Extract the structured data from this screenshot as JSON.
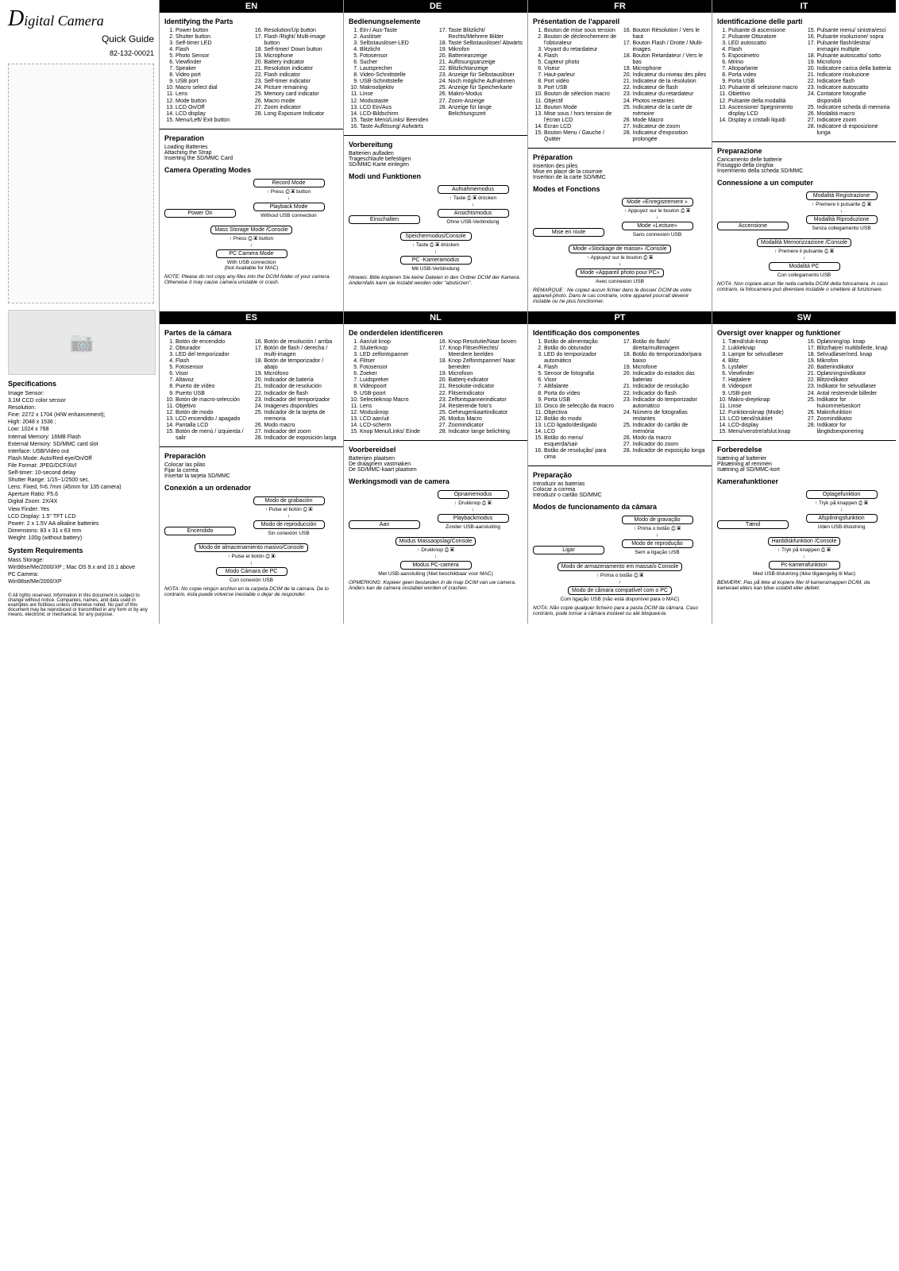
{
  "left": {
    "title_pre": "D",
    "title_rest": "igital Camera",
    "subtitle": "Quick Guide",
    "partnum": "82-132-00021",
    "spec_hdr": "Specifications",
    "specs": [
      "Image Sensor:",
      "3.1M CCD color sensor",
      "Resolution:",
      "Fine: 2272 x 1704 (H/W enhancement);",
      "High: 2048 x 1536 ;",
      "Low: 1024 x 768",
      "Internal Memory: 16MB Flash",
      "External Memory: SD/MMC card slot",
      "Interface: USB/Video out",
      "Flash Mode: Auto/Red-eye/On/Off",
      "File Format: JPEG/DCF/AVI",
      "Self-timer: 10-second delay",
      "Shutter Range: 1/15~1/2500 sec.",
      "Lens: Fixed, f=6.7mm (45mm for 135 camera)",
      "Aperture Ratio: F5.6",
      "Digital Zoom: 2X/4X",
      "View Finder: Yes",
      "LCD Display: 1.5\" TFT LCD",
      "Power: 2 x 1.5V AA alkaline batteries",
      "Dimensions: 83 x 31 x 63 mm",
      "Weight: 100g (without battery)"
    ],
    "sysreq_hdr": "System Requirements",
    "sysreq": [
      "Mass Storage:",
      "Win98se/Me/2000/XP ; Mac OS 9.x and 10.1 above",
      "PC Camera:",
      "Win98se/Me/2000/XP"
    ],
    "footer": "© All rights reserved. Information in this document is subject to change without notice. Companies, names, and data used in examples are fictitious unless otherwise noted. No part of this document may be reproduced or transmitted in any form or by any means, electronic or mechanical, for any purpose."
  },
  "langs": [
    {
      "code": "EN",
      "parts_hdr": "Identifying the Parts",
      "partsA": [
        "Power button",
        "Shutter button",
        "Self-timer LED",
        "Flash",
        "Photo Sensor",
        "Viewfinder",
        "Speaker",
        "Video port",
        "USB port",
        "Macro select dial",
        "Lens",
        "Mode button",
        "LCD On/Off",
        "LCD display",
        "Menu/Left/ Exit button"
      ],
      "partsB": [
        "Resolution/Up button",
        "Flash /Right/ Multi-image button",
        "Self-timer/ Down button",
        "Microphone",
        "Battery indicator",
        "Resolution indicator",
        "Flash indicator",
        "Self-timer indicator",
        "Picture remaining",
        "Memory card indicator",
        "Macro mode",
        "Zoom indicator",
        "Long Exposure Indicator"
      ],
      "prep_hdr": "Preparation",
      "prep": [
        "Loading Batteries",
        "Attaching the Strap",
        "Inserting the SD/MMC Card"
      ],
      "modes_hdr": "Camera Operating Modes",
      "flow": {
        "power": "Power On",
        "rec": "Record Mode",
        "press": "Press ⎙ ▣ button",
        "play": "Playback Mode",
        "nousb": "Without USB connection",
        "nousb2": "Ohne USB-Verbindung",
        "mass": "Mass Storage Mode /Console",
        "pc": "PC Camera Mode",
        "withusb": "With USB connection",
        "mac": "(Not Available for MAC)"
      },
      "note": "NOTE: Please do not copy any files into the DCIM folder of your camera. Otherwise it may cause camera unstable or crash."
    },
    {
      "code": "DE",
      "parts_hdr": "Bedienungselemente",
      "partsA": [
        "Ein-/ Aus-Taste",
        "Auslöser",
        "Selbstauslöser-LED",
        "Blitzlicht",
        "Fotosensor",
        "Sucher",
        "Lautsprecher",
        "Video-Schnittstelle",
        "USB-Schnittstelle",
        "Makroobjektiv",
        "Linse",
        "Modustaste",
        "LCD Ein/Aus",
        "LCD-Bildschirm",
        "Taste Menü/Links/ Beenden",
        "Taste Auflösung/ Aufwärts"
      ],
      "partsB": [
        "Taste Blitzlicht/ Rechts/Mehrere Bilder",
        "Taste Selbstauslöser/ Abwärts",
        "Mikrofon",
        "Batterieanzeige",
        "Auflösungsanzeige",
        "Blitzlichtanzeige",
        "Anzeige für Selbstauslöser",
        "Noch mögliche Aufnahmen",
        "Anzeige für Speicherkarte",
        "Makro-Modus",
        "Zoom-Anzeige",
        "Anzeige für lange Belichtungszeit"
      ],
      "prep_hdr": "Vorbereitung",
      "prep": [
        "Batterien aufladen",
        "Trageschlaufe befestigen",
        "SD/MMC-Karte einlegen"
      ],
      "modes_hdr": "Modi und Funktionen",
      "flow": {
        "power": "Einschalten",
        "rec": "Aufnahmemodus",
        "press": "Taste ⎙ ▣ drücken",
        "play": "Ansichtsmodus",
        "nousb": "Ohne USB-Verbindung",
        "mass": "Speichermodus/Console",
        "pc": "PC -Kameramodus",
        "withusb": "Mit USB-Verblindung"
      },
      "note": "Hinweis: Bitte kopieren Sie keine Dateien in den Ordner DCIM der Kamera. Andernfalls kann sie instabil werden oder \"abstürzen\"."
    },
    {
      "code": "FR",
      "parts_hdr": "Présentation de l'appareil",
      "partsA": [
        "Bouton de mise sous tension",
        "Bouton de déclenchement de l'obturateur",
        "Voyant du retardateur",
        "Flash",
        "Capteur photo",
        "Viseur",
        "Haut-parleur",
        "Port vidéo",
        "Port USB",
        "Bouton de sélection macro",
        "Objectif",
        "Bouton Mode",
        "Mise sous / hors tension de l'écran LCD",
        "Écran LCD",
        "Bouton Menu / Gauche / Quitter"
      ],
      "partsB": [
        "Bouton Résolution / Vers le haut",
        "Bouton Flash / Droite / Multi-images",
        "Bouton Retardateur / Vers le bas",
        "Microphone",
        "Indicateur du niveau des piles",
        "Indicateur de la résolution",
        "Indicateur de flash",
        "Indicateur du retardateur",
        "Photos restantes",
        "Indicateur de la carte de mémoire",
        "Mode Macro",
        "Indicateur de zoom",
        "Indicateur d'exposition prolongée"
      ],
      "prep_hdr": "Préparation",
      "prep": [
        "Insertion des piles",
        "Mise en place de la courroie",
        "Insertion de la carte SD/MMC"
      ],
      "modes_hdr": "Modes et Fonctions",
      "flow": {
        "power": "Mise en route",
        "rec": "Mode «Enregistrement »",
        "press": "Appuyez sur le bouton ⎙ ▣",
        "play": "Mode «Lecture»",
        "nousb": "Sans connexion USB",
        "mass": "Mode «Stockage de masse» /Console",
        "pc": "Mode «Appareil photo pour PC»",
        "withusb": "Avec connexion USB"
      },
      "note": "REMARQUE : Ne copiez aucun fichier dans le dossier DCIM de votre appareil-photo. Dans le cas contraire, votre appareil pourrait devenir instable ou ne plus fonctionner."
    },
    {
      "code": "IT",
      "parts_hdr": "Identificazione delle parti",
      "partsA": [
        "Pulsante di ascensione",
        "Pulsante Otturatore",
        "LED autoscatto",
        "Flash",
        "Esposimetro",
        "Mirino",
        "Altoparlante",
        "Porta video",
        "Porta USB",
        "Pulsante di selezione macro",
        "Obiettivo",
        "Pulsante della modalità",
        "Ascensione/ Spegnimento display LCD",
        "Display a cristalli liquidi"
      ],
      "partsB": [
        "Pulsante menu/ sinistra/esci",
        "Pulsante risoluzione/ sopra",
        "Pulsante flash/destra/ immagini multiple",
        "Pulsante autoscatto/ sotto",
        "Microfono",
        "Indicatore carica della batteria",
        "Indicatore risoluzione",
        "Indicatore flash",
        "Indicatore autoscatto",
        "Contatore fotografie disponibili",
        "Indicatore scheda di memoria",
        "Modalità macro",
        "Indicatore zoom",
        "Indicatore di esposizione lunga"
      ],
      "prep_hdr": "Preparazione",
      "prep": [
        "Caricamento delle batterie",
        "Fissaggio della cinghia",
        "Inserimento della scheda SD/MMC"
      ],
      "modes_hdr": "Connessione a un computer",
      "flow": {
        "power": "Accensione",
        "rec": "Modalità Registrazione",
        "press": "Premere il pulsante ⎙ ▣",
        "play": "Modalità Riproduzione",
        "nousb": "Senza collegamento USB",
        "mass": "Modalità Memorizzazione /Console",
        "pc": "Modalità PC",
        "withusb": "Con collegamento USB"
      },
      "note": "NOTA: Non copiare alcun file nella cartella DCIM della fotocamera. In caso contrario, la fotocamera può diventare instabile o smettere di funzionare."
    },
    {
      "code": "ES",
      "parts_hdr": "Partes de la cámara",
      "partsA": [
        "Botón de encendido",
        "Obturador",
        "LED del temporizador",
        "Flash",
        "Fotosensor",
        "Visor",
        "Altavoz",
        "Puerto de vídeo",
        "Puerto USB",
        "Botón de macro-selección",
        "Objetivo",
        "Botón de modo",
        "LCD encendido / apagado",
        "Pantalla LCD",
        "Botón de menú / izquierda / salir"
      ],
      "partsB": [
        "Botón de resolución / arriba",
        "Botón de flash / derecha / multi-imagen",
        "Botón de temporizador / abajo",
        "Micrófono",
        "Indicador de batería",
        "Indicador de resolución",
        "Indicador de flash",
        "Indicador del temporizador",
        "Imágenes disponibles",
        "Indicador de la tarjeta de memoria",
        "Modo macro",
        "Indicador del zoom",
        "Indicador de exposición larga"
      ],
      "prep_hdr": "Preparación",
      "prep": [
        "Colocar las pilas",
        "Fijar la correa",
        "Insertar la tarjeta SD/MMC"
      ],
      "modes_hdr": "Conexión a un ordenador",
      "flow": {
        "power": "Encendido",
        "rec": "Modo de grabación",
        "press": "Pulse el botón ⎙ ▣",
        "play": "Modo de reproducción",
        "nousb": "Sin conexión USB",
        "mass": "Modo de almacenamiento masivo/Console",
        "pc": "Modo Cámara de PC",
        "withusb": "Con conexión USB"
      },
      "note": "NOTA: No copie ningún archivo en la carpeta DCIM de la cámara. De lo contrario, ésta puede volverse inestable o dejar de responder."
    },
    {
      "code": "NL",
      "parts_hdr": "De onderdelen identificeren",
      "partsA": [
        "Aan/uit knop",
        "Sluiterknop",
        "LED zelfontspanner",
        "Flitser",
        "Fotosensor",
        "Zoeker",
        "Luidspreker",
        "Videopoort",
        "USB-poort",
        "Selectieknop Macro",
        "Lens",
        "Modusknop",
        "LCD aan/uit",
        "LCD-scherm",
        "Knop Menu/Links/ Einde"
      ],
      "partsB": [
        "Knop Resolutie/Naar boven",
        "Knop Flitser/Rechts/ Meerdere beelden",
        "Knop Zelfontspanner/ Naar beneden",
        "Microfoon",
        "Batterij-indicator",
        "Resolutie-indicator",
        "Flitserindicator",
        "Zelfontspannerindicator",
        "Resterende foto's",
        "Geheugenkaartindicator",
        "Modus Macro",
        "Zoomindicator",
        "Indicator lange belichting"
      ],
      "prep_hdr": "Voorbereidsel",
      "prep": [
        "Batterijen plaatsen",
        "De draagriem vastmaken",
        "De SD/MMC-kaart plaatsen"
      ],
      "modes_hdr": "Werkingsmodi van de camera",
      "flow": {
        "power": "Aan",
        "rec": "Opnamemodus",
        "press": "Drukknop ⎙ ▣",
        "play": "Playbackmodus",
        "nousb": "Zonder USB-aansluiting",
        "mass": "Modus Massaopslag/Console",
        "pc": "Modus PC-camera",
        "withusb": "Met USB-aansluiting (Niet beschikbaar voor MAC)"
      },
      "note": "OPMERKING: Kopieer geen bestanden in de map DCIM van uw camera. Anders kan de camera onstabiel worden of crashen."
    },
    {
      "code": "PT",
      "parts_hdr": "Identificação dos componentes",
      "partsA": [
        "Botão de alimentação",
        "Botão do obturador",
        "LED do temporizador automático",
        "Flash",
        "Sensor de fotografia",
        "Visor",
        "Altifalante",
        "Porta do vídeo",
        "Porta USB",
        "Disco de selecção da macro",
        "Objectiva",
        "Botão do modo",
        "LCD ligado/desligado",
        "LCD",
        "Botão do menu/ esquerda/sair",
        "Botão de resolução/ para cima"
      ],
      "partsB": [
        "Botão do flash/ direita/multimagem",
        "Botão do temporizador/para baixo",
        "Microfone",
        "Indicador do estados das baterias",
        "Indicador de resolução",
        "Indicador do flash",
        "Indicador do temporizador automático",
        "Número de fotografias restantes",
        "Indicador do cartão de memória",
        "Modo da macro",
        "Indicador do zoom",
        "Indicador de exposição longa"
      ],
      "prep_hdr": "Preparação",
      "prep": [
        "Introduzir as baterias",
        "Colocar a correia",
        "Introduzir o cartão SD/MMC"
      ],
      "modes_hdr": "Modos de funcionamento da câmara",
      "flow": {
        "power": "Ligar",
        "rec": "Modo de gravação",
        "press": "Prima o botão ⎙ ▣",
        "play": "Modo de reprodução",
        "nousb": "Sem a ligação USB",
        "mass": "Modo de armazenamento em massa/o Console",
        "pc": "Modo de câmara compatível com o PC",
        "withusb": "Com ligação USB (não está disponível para o MAC)"
      },
      "note": "NOTA: Não copie qualquer ficheiro para a pasta DCIM da câmara. Caso contrário, pode tornar a câmara instável ou até bloqueá-la."
    },
    {
      "code": "SW",
      "parts_hdr": "Oversigt over knapper og funktioner",
      "partsA": [
        "Tænd/sluk-knap",
        "Lukkeknap",
        "Lampe for selvudløser",
        "Blitz",
        "Lysføler",
        "Viewfinder",
        "Højtalere",
        "Videoport",
        "USB-port",
        "Makro-drejeknap",
        "Linse",
        "Funktionsknap (Mode)",
        "LCD tænd/slukket",
        "LCD-display",
        "Menu/venstre/afslut.knap"
      ],
      "partsB": [
        "Opløsning/op. knap",
        "Blitz/højre/ multibillede, knap",
        "Selvudløser/ned. knap",
        "Mikrofon",
        "Batteriindikator",
        "Opløsningsindikator",
        "Blitzindikator",
        "Indikator for selvudløser",
        "Antal resterende billeder",
        "Indikator for hukommelseskort",
        "Makrofunktion",
        "Zoomindikator",
        "Indikator for långtidsexponering"
      ],
      "prep_hdr": "Forberedelse",
      "prep": [
        "Isætning af batterier",
        "Påsætning af remmen",
        "Isætning af SD/MMC-kort"
      ],
      "modes_hdr": "Kamerafunktioner",
      "flow": {
        "power": "Tænd",
        "rec": "Optagefunktion",
        "press": "Tryk på knappen ⎙ ▣",
        "play": "Afspilningsfunktion",
        "nousb": "Uden USB-tilslutning",
        "mass": "Harddiskfunktion /Console",
        "pc": "Pc-kamerafunktion",
        "withusb": "Med USB-tilslutning (Ikke tilgængelig til Mac)"
      },
      "note": "BEMÆRK: Pas på ikke at kopiere filer til kameramappen DCIM, da kameraet ellers kan blive ustabilt eller defekt."
    }
  ]
}
